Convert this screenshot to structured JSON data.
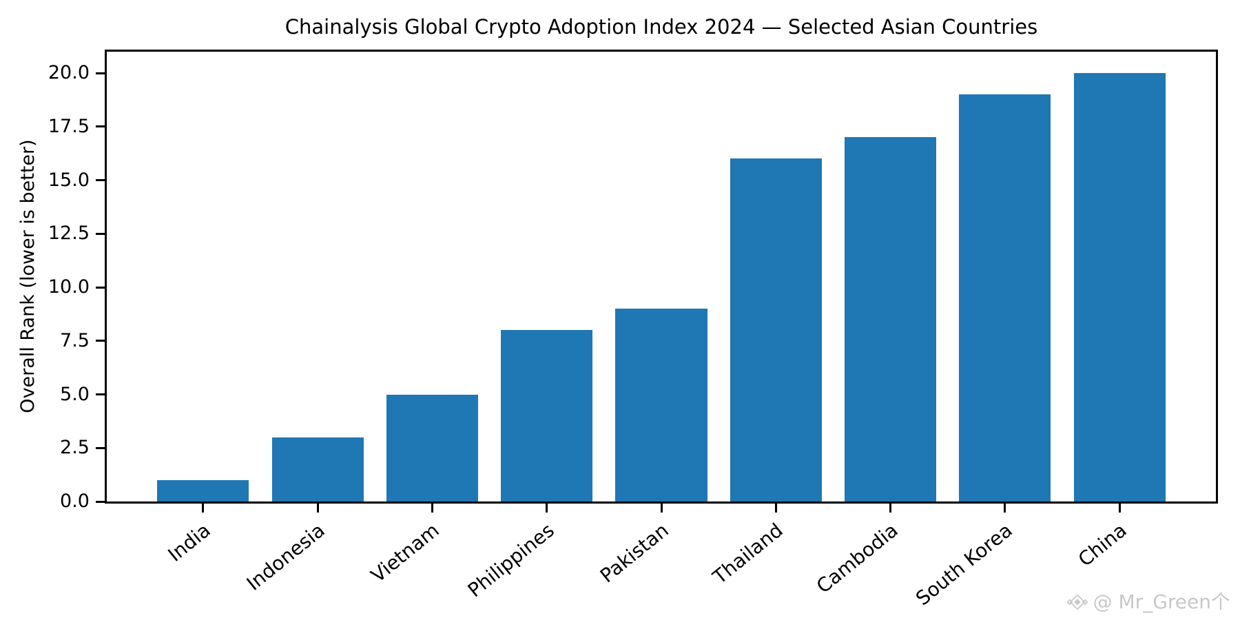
{
  "chart_data": {
    "type": "bar",
    "title": "Chainalysis Global Crypto Adoption Index 2024 — Selected Asian Countries",
    "xlabel": "",
    "ylabel": "Overall Rank (lower is better)",
    "categories": [
      "India",
      "Indonesia",
      "Vietnam",
      "Philippines",
      "Pakistan",
      "Thailand",
      "Cambodia",
      "South Korea",
      "China"
    ],
    "values": [
      1,
      3,
      5,
      8,
      9,
      16,
      17,
      19,
      20
    ],
    "bar_color": "#1f77b4",
    "axis_color": "#000000",
    "background_color": "#ffffff",
    "ylim": [
      0,
      21
    ],
    "ytick_values": [
      0,
      2.5,
      5,
      7.5,
      10,
      12.5,
      15,
      17.5,
      20
    ],
    "ytick_labels": [
      "0.0",
      "2.5",
      "5.0",
      "7.5",
      "10.0",
      "12.5",
      "15.0",
      "17.5",
      "20.0"
    ],
    "x_tick_rotation_deg": 39,
    "bar_width_fraction": 0.8,
    "grid": false
  },
  "watermark": {
    "icon": "diamond-gem-icon",
    "text": "@ Mr_Green个",
    "color": "#c8c8c8"
  }
}
